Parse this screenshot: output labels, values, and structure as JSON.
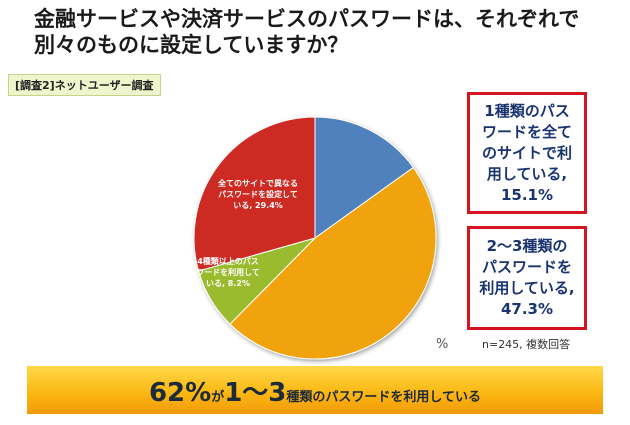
{
  "title": "金融サービスや決済サービスのパスワードは、それぞれで別々のものに設定していますか？",
  "tag": "[調査2]ネットユーザー調査",
  "chart_data": {
    "type": "pie",
    "slices": [
      {
        "label": "1種類のパスワードを全てのサイトで利用している,15.1%",
        "value": 15.1,
        "color": "#4f81bd"
      },
      {
        "label": "2～3種類のパスワードを利用している,47.3%",
        "value": 47.3,
        "color": "#f0a30a"
      },
      {
        "label": "4種類以上のパスワードを利用している, 8.2%",
        "value": 8.2,
        "color": "#9bbb2d"
      },
      {
        "label": "全てのサイトで異なるパスワードを設定している, 29.4%",
        "value": 29.4,
        "color": "#cc2b22"
      }
    ],
    "unit": "%",
    "note": "n=245, 複数回答"
  },
  "labels": {
    "slice_red": "全てのサイトで異なる\nパスワードを設定して\nいる, 29.4%",
    "slice_green": "4種類以上のパス\nワードを利用して\nいる, 8.2%"
  },
  "callouts": {
    "one": "1種類のパス\nワードを全て\nのサイトで利\n用している,\n15.1%",
    "two": "2～3種類の\nパスワードを\n利用している,\n47.3%"
  },
  "banner": {
    "pct": "62%",
    "ga": "が",
    "range": "1～3",
    "rest": "種類のパスワードを利用している"
  }
}
